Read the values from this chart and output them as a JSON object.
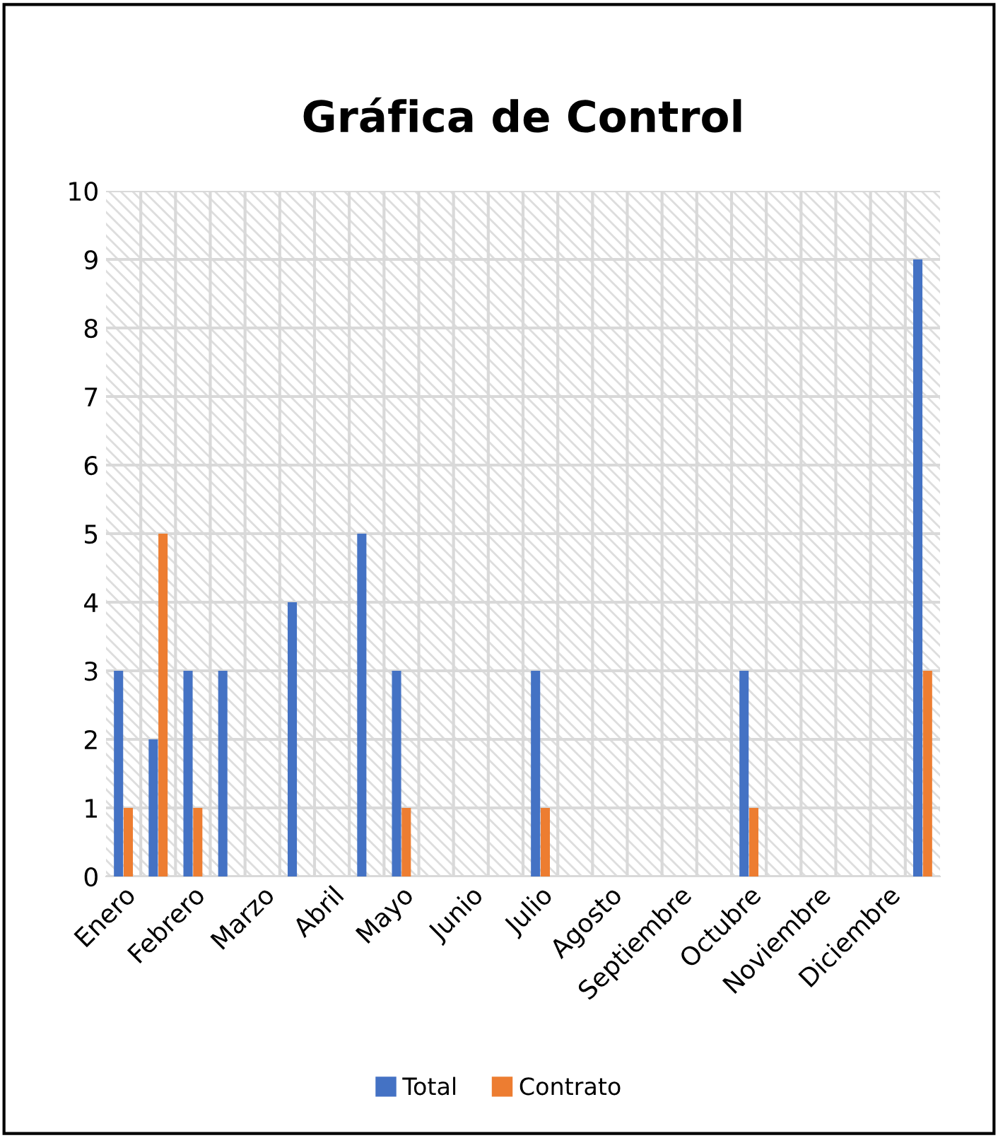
{
  "chart_data": {
    "type": "bar",
    "title": "Gráfica de Control",
    "categories": [
      "Enero",
      null,
      "Febrero",
      null,
      "Marzo",
      null,
      "Abril",
      null,
      "Mayo",
      null,
      "Junio",
      null,
      "Julio",
      null,
      "Agosto",
      null,
      "Septiembre",
      null,
      "Octubre",
      null,
      "Noviembre",
      null,
      "Diciembre",
      null
    ],
    "series": [
      {
        "name": "Total",
        "color": "#4472c4",
        "values": [
          3,
          2,
          3,
          3,
          null,
          4,
          null,
          5,
          3,
          null,
          null,
          null,
          3,
          null,
          null,
          null,
          null,
          null,
          3,
          null,
          null,
          null,
          null,
          9
        ]
      },
      {
        "name": "Contrato",
        "color": "#ed7d31",
        "values": [
          1,
          5,
          1,
          null,
          null,
          null,
          null,
          null,
          1,
          null,
          null,
          null,
          1,
          null,
          null,
          null,
          null,
          null,
          1,
          null,
          null,
          null,
          null,
          3
        ]
      }
    ],
    "ylim": [
      0,
      10
    ],
    "yticks": [
      0,
      1,
      2,
      3,
      4,
      5,
      6,
      7,
      8,
      9,
      10
    ],
    "grid": true,
    "legend": "bottom"
  }
}
